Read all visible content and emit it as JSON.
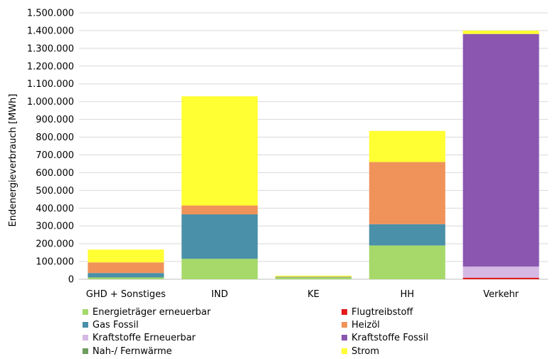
{
  "chart_data": {
    "type": "bar",
    "stacked": true,
    "ylabel": "Endenergieverbrauch  [MWh]",
    "ylim": [
      0,
      1500000
    ],
    "y_tick_labels": [
      "0",
      "100.000",
      "200.000",
      "300.000",
      "400.000",
      "500.000",
      "600.000",
      "700.000",
      "800.000",
      "900.000",
      "1.000.000",
      "1.100.000",
      "1.200.000",
      "1.300.000",
      "1.400.000",
      "1.500.000"
    ],
    "y_tick_values": [
      0,
      100000,
      200000,
      300000,
      400000,
      500000,
      600000,
      700000,
      800000,
      900000,
      1000000,
      1100000,
      1200000,
      1300000,
      1400000,
      1500000
    ],
    "grid": true,
    "legend_position": "bottom",
    "categories": [
      "GHD + Sonstiges",
      "IND",
      "KE",
      "HH",
      "Verkehr"
    ],
    "series": [
      {
        "name": "Energieträger erneuerbar",
        "color": "#a6d96a",
        "values": [
          10000,
          115000,
          10000,
          190000,
          0
        ]
      },
      {
        "name": "Flugtreibstoff",
        "color": "#e31a1c",
        "values": [
          0,
          0,
          0,
          0,
          8000
        ]
      },
      {
        "name": "Gas Fossil",
        "color": "#4a90a8",
        "values": [
          25000,
          250000,
          2000,
          120000,
          0
        ]
      },
      {
        "name": "Heizöl",
        "color": "#f0935a",
        "values": [
          60000,
          50000,
          1000,
          350000,
          0
        ]
      },
      {
        "name": "Kraftstoffe Erneuerbar",
        "color": "#d5b9e4",
        "values": [
          0,
          0,
          0,
          0,
          63000
        ]
      },
      {
        "name": "Kraftstoffe Fossil",
        "color": "#8a56b0",
        "values": [
          0,
          0,
          0,
          0,
          1310000
        ]
      },
      {
        "name": "Nah-/ Fernwärme",
        "color": "#6e9e5e",
        "values": [
          0,
          0,
          2000,
          0,
          0
        ]
      },
      {
        "name": "Strom",
        "color": "#ffff33",
        "values": [
          72000,
          615000,
          5000,
          175000,
          19000
        ]
      }
    ]
  }
}
